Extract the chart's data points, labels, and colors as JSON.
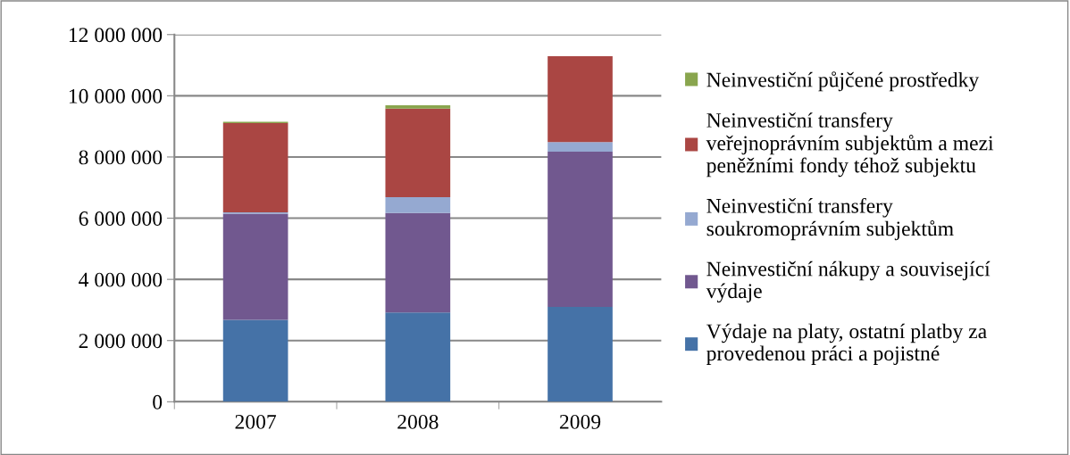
{
  "chart_data": {
    "type": "bar",
    "stacked": true,
    "categories": [
      "2007",
      "2008",
      "2009"
    ],
    "series": [
      {
        "name": "Výdaje na platy, ostatní platby za provedenou práci a pojistné",
        "color": "#4572a7",
        "values": [
          2680000,
          2920000,
          3100000
        ]
      },
      {
        "name": "Neinvestiční nákupy a související výdaje",
        "color": "#71588f",
        "values": [
          3470000,
          3250000,
          5070000
        ]
      },
      {
        "name": "Neinvestiční transfery soukromoprávním subjektům",
        "color": "#95a9d1",
        "values": [
          40000,
          520000,
          320000
        ]
      },
      {
        "name": "Neinvestiční transfery veřejnoprávním subjektům a mezi peněžními fondy téhož subjektu",
        "color": "#aa4643",
        "values": [
          2920000,
          2890000,
          2800000
        ]
      },
      {
        "name": "Neinvestiční půjčené prostředky",
        "color": "#89a54e",
        "values": [
          40000,
          110000,
          null
        ]
      }
    ],
    "ylim": [
      0,
      12000000
    ],
    "yticks": [
      0,
      {
        "value": 2000000,
        "label": "2 000 000"
      },
      {
        "value": 4000000,
        "label": "4 000 000"
      },
      {
        "value": 6000000,
        "label": "6 000 000"
      },
      {
        "value": 8000000,
        "label": "8 000 000"
      },
      {
        "value": 10000000,
        "label": "10 000 000"
      },
      {
        "value": 12000000,
        "label": "12 000 000"
      }
    ],
    "grid": "y",
    "legend": "right"
  }
}
